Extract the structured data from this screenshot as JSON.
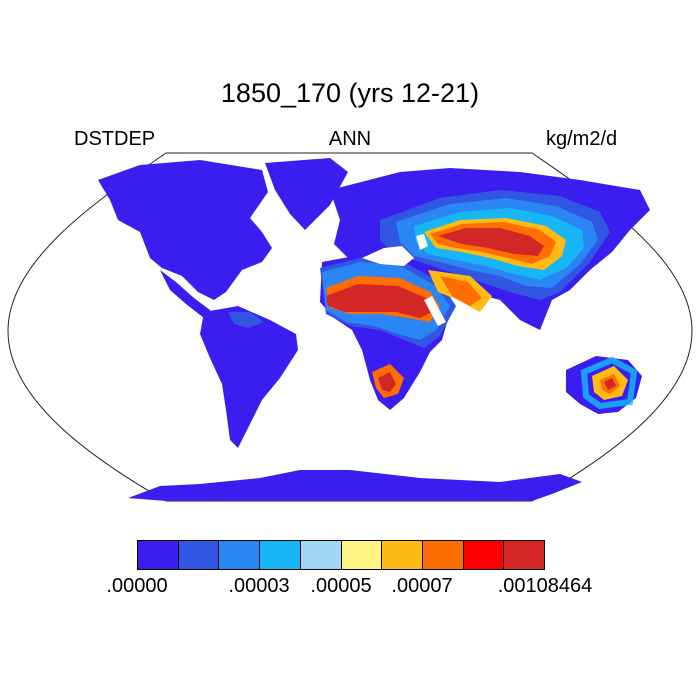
{
  "title": "1850_170 (yrs 12-21)",
  "left_label": "DSTDEP",
  "center_label": "ANN",
  "right_label": "kg/m2/d",
  "colors": {
    "ocean": "#ffffff",
    "outline": "#222222",
    "level_1": "#3a1eef",
    "level_2": "#3256e4",
    "level_3": "#2a86f5",
    "level_4": "#16b6f7",
    "level_5": "#a2d7f3",
    "level_6": "#fff481",
    "level_7": "#ffbb14",
    "level_8": "#ff6e00",
    "level_9": "#ff0000",
    "level_10": "#d32626"
  },
  "colorbar": {
    "colors": [
      "#3a1eef",
      "#3256e4",
      "#2a86f5",
      "#16b6f7",
      "#a2d7f3",
      "#fff481",
      "#ffbb14",
      "#ff6e00",
      "#ff0000",
      "#d32626"
    ],
    "tick_labels": [
      ".00000",
      ".00003",
      ".00005",
      ".00007",
      ".00108464"
    ]
  }
}
